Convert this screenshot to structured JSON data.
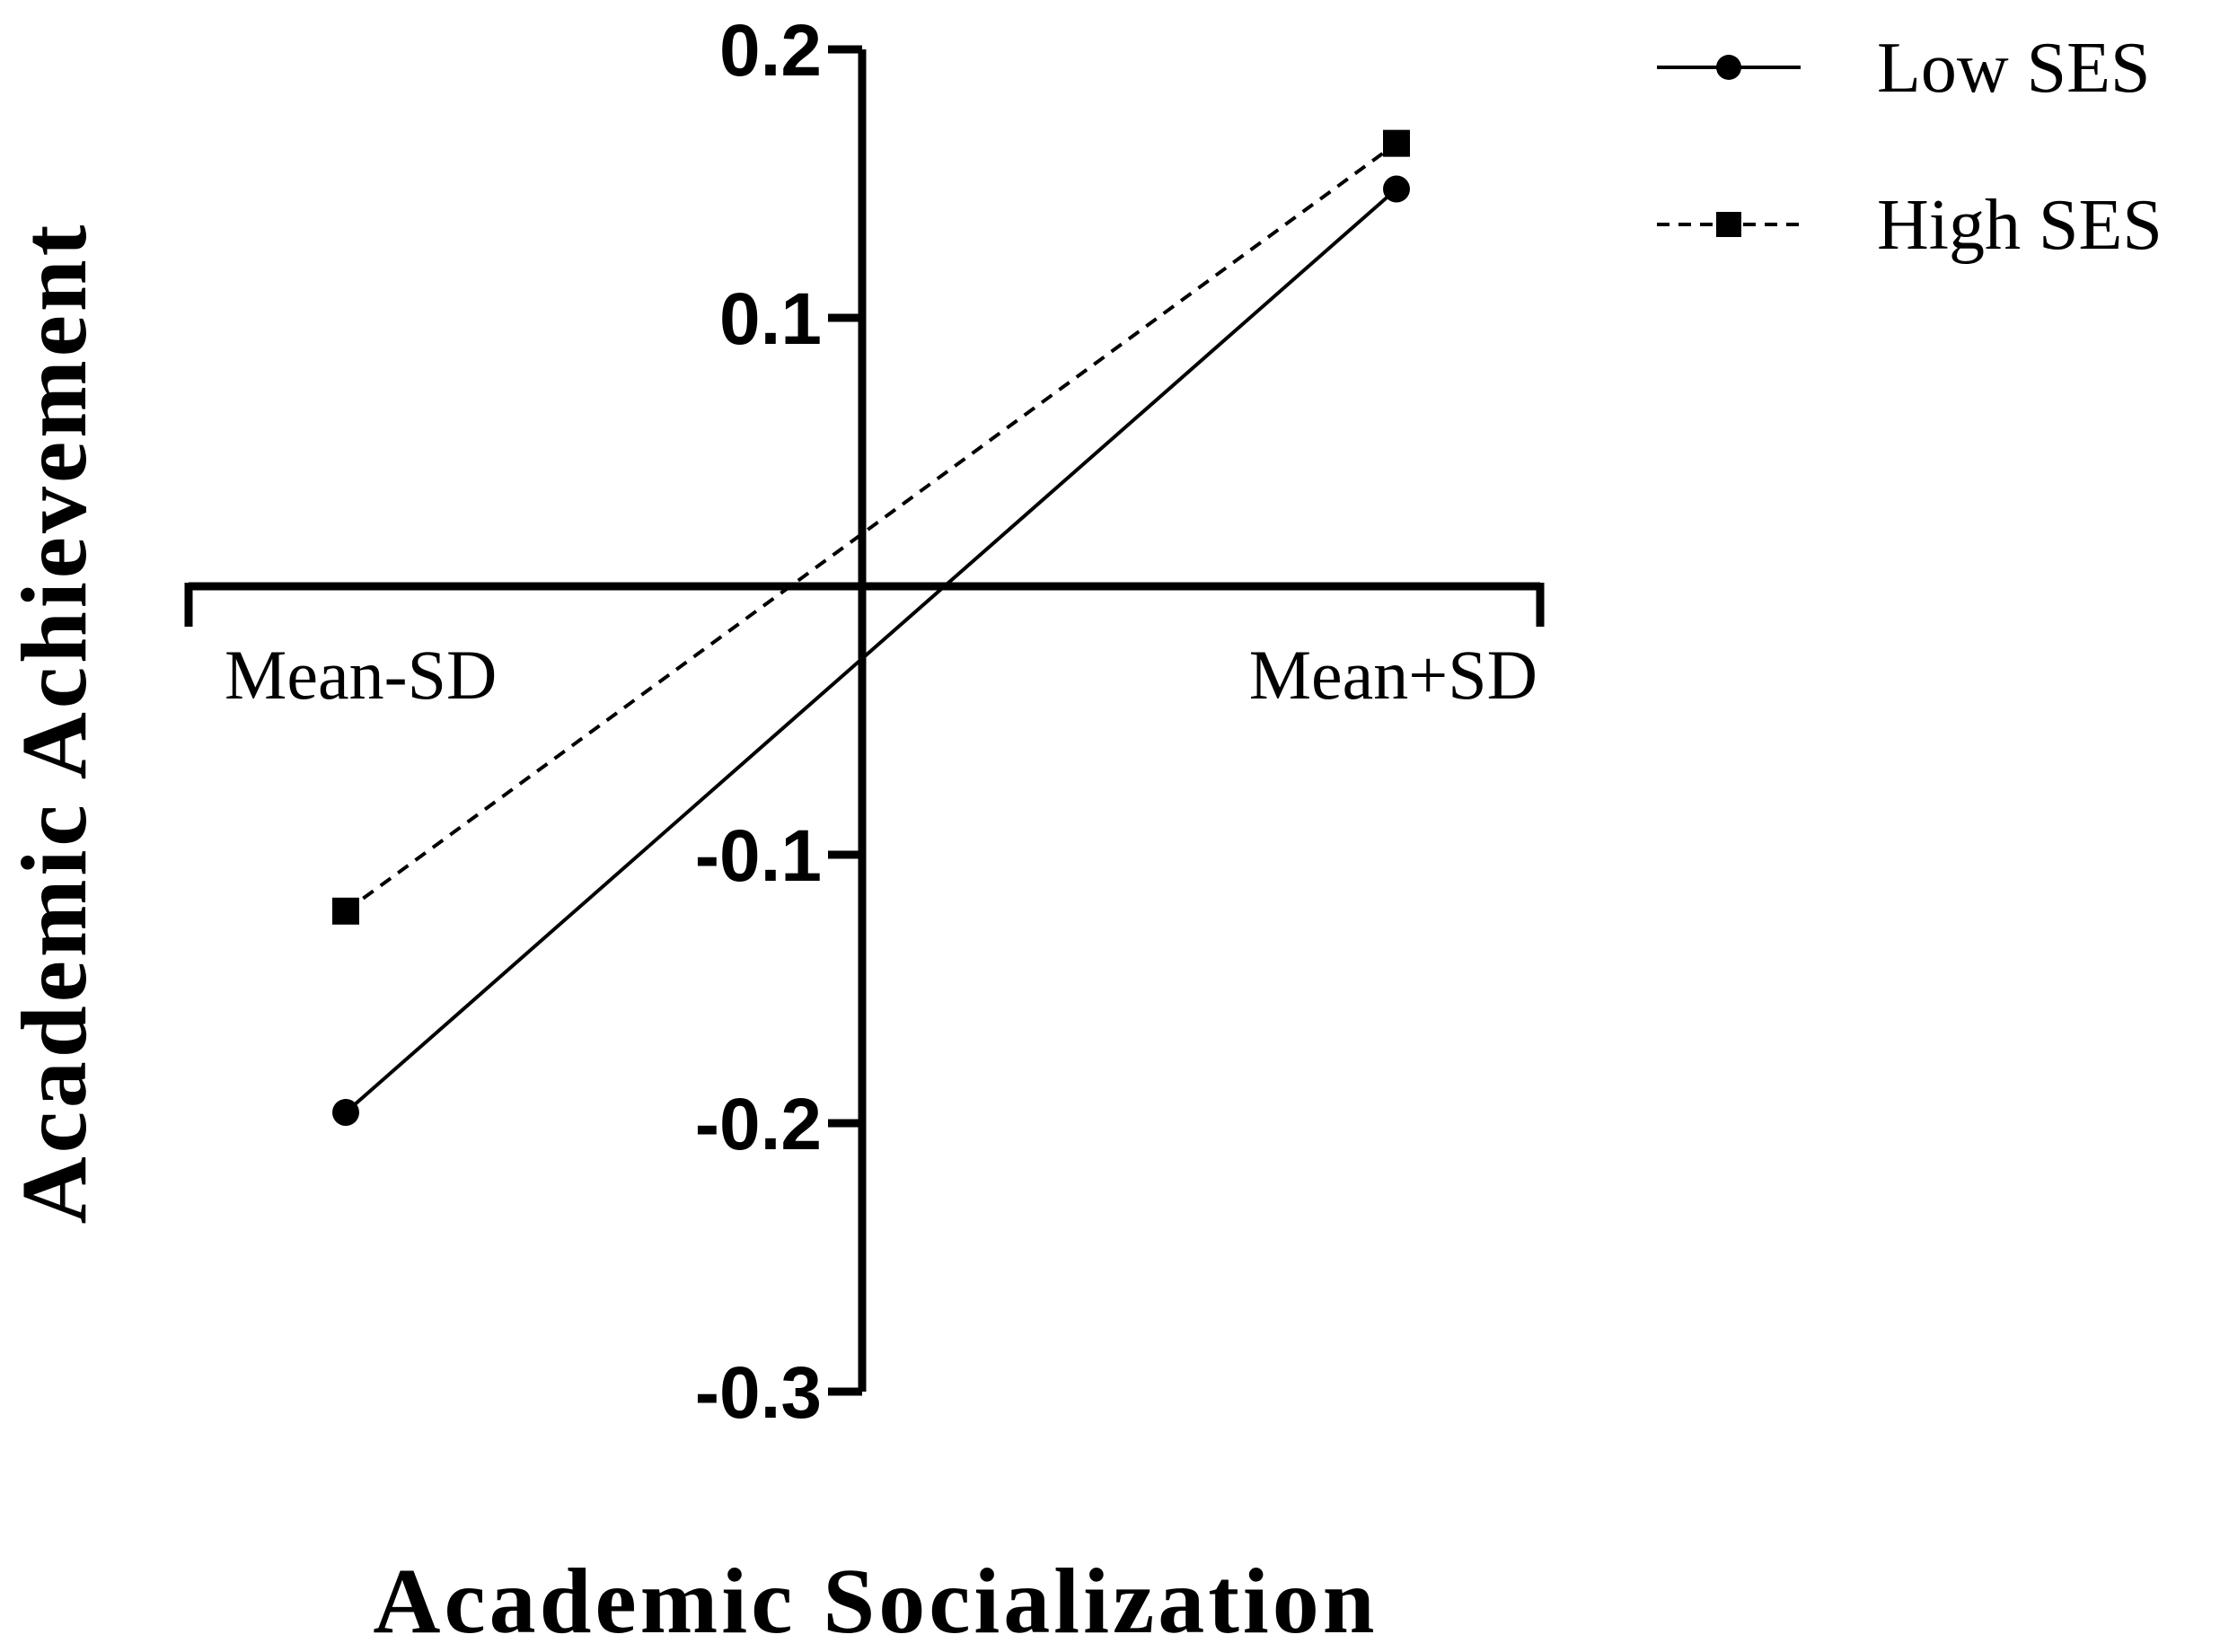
{
  "chart_data": {
    "type": "line",
    "categories": [
      "Mean-SD",
      "Mean+SD"
    ],
    "series": [
      {
        "name": "Low SES",
        "values": [
          -0.196,
          0.148
        ],
        "marker": "circle",
        "line_style": "solid",
        "color": "#000000"
      },
      {
        "name": "High SES",
        "values": [
          -0.121,
          0.165
        ],
        "marker": "square",
        "line_style": "dashed",
        "color": "#000000"
      }
    ],
    "xlabel": "Academic Socialization",
    "ylabel": "Academic Achievement",
    "ylim": [
      -0.3,
      0.2
    ],
    "yticks": [
      "0.2",
      "0.1",
      "-0.1",
      "-0.2",
      "-0.3"
    ],
    "ytick_values": [
      0.2,
      0.1,
      -0.1,
      -0.2,
      -0.3
    ],
    "grid": false,
    "legend_position": "top-right"
  }
}
